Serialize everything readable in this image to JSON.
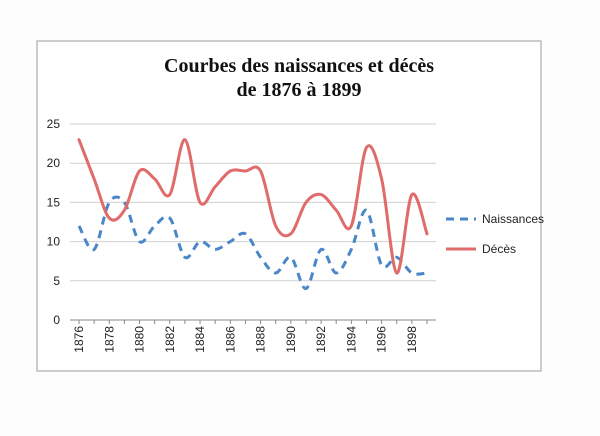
{
  "chart_data": {
    "type": "line",
    "title_lines": [
      "Courbes des naissances et décès",
      "de 1876 à 1899"
    ],
    "xlabel": "",
    "ylabel": "",
    "ylim": [
      0,
      25
    ],
    "yticks": [
      0,
      5,
      10,
      15,
      20,
      25
    ],
    "x": [
      1876,
      1877,
      1878,
      1879,
      1880,
      1881,
      1882,
      1883,
      1884,
      1885,
      1886,
      1887,
      1888,
      1889,
      1890,
      1891,
      1892,
      1893,
      1894,
      1895,
      1896,
      1897,
      1898,
      1899
    ],
    "xticks": [
      1876,
      1878,
      1880,
      1882,
      1884,
      1886,
      1888,
      1890,
      1892,
      1894,
      1896,
      1898
    ],
    "grid": true,
    "legend_position": "right",
    "series": [
      {
        "name": "Naissances",
        "color": "#4a86c8",
        "style": "dashed",
        "values": [
          12,
          9,
          15,
          15,
          10,
          12,
          13,
          8,
          10,
          9,
          10,
          11,
          8,
          6,
          8,
          4,
          9,
          6,
          9,
          14,
          7,
          8,
          6,
          6
        ]
      },
      {
        "name": "Décès",
        "color": "#e06b6b",
        "style": "solid",
        "values": [
          23,
          18,
          13,
          14,
          19,
          18,
          16,
          23,
          15,
          17,
          19,
          19,
          19,
          12,
          11,
          15,
          16,
          14,
          12,
          22,
          18,
          6,
          16,
          11
        ]
      }
    ]
  }
}
